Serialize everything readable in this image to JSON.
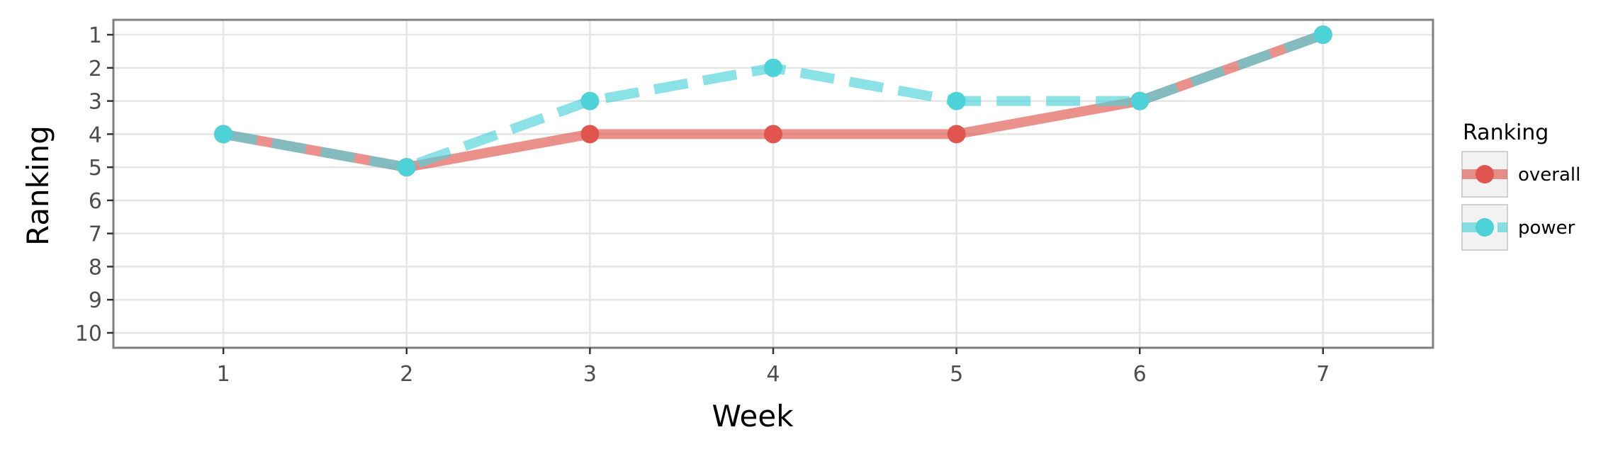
{
  "chart_data": {
    "type": "line",
    "xlabel": "Week",
    "ylabel": "Ranking",
    "x": [
      1,
      2,
      3,
      4,
      5,
      6,
      7
    ],
    "xlim": [
      0.4,
      7.6
    ],
    "ylim": [
      10.45,
      0.55
    ],
    "y_reversed": true,
    "x_ticks": [
      "1",
      "2",
      "3",
      "4",
      "5",
      "6",
      "7"
    ],
    "y_ticks": [
      "1",
      "2",
      "3",
      "4",
      "5",
      "6",
      "7",
      "8",
      "9",
      "10"
    ],
    "grid": true,
    "legend_title": "Ranking",
    "legend_position": "right",
    "series": [
      {
        "name": "overall",
        "values": [
          4,
          5,
          4,
          4,
          4,
          3,
          1
        ],
        "color": "#e0564f",
        "line_style": "solid"
      },
      {
        "name": "power",
        "values": [
          4,
          5,
          3,
          2,
          3,
          3,
          1
        ],
        "color": "#4dd2d8",
        "line_style": "dashed"
      }
    ]
  }
}
